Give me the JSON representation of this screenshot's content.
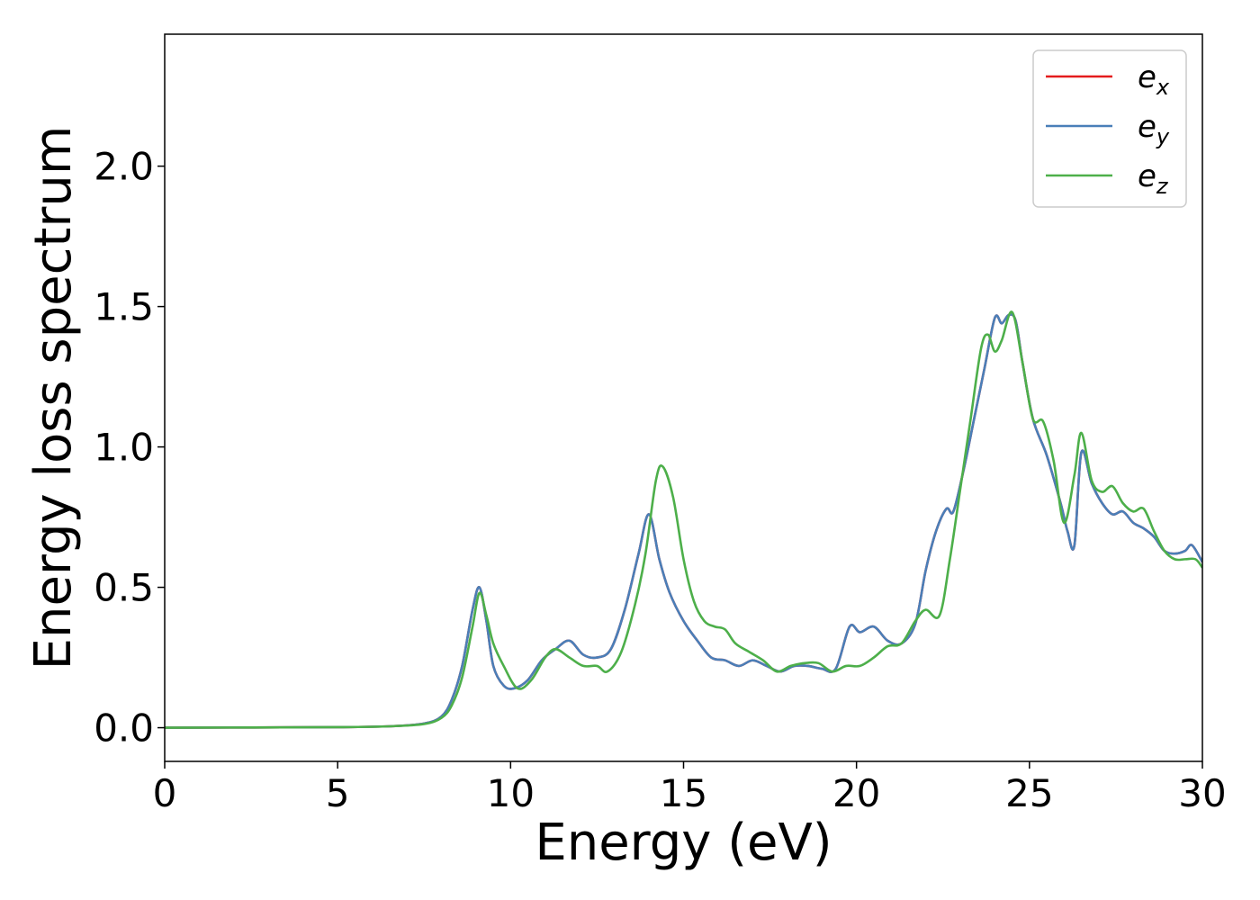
{
  "chart_data": {
    "type": "line",
    "xlabel": "Energy (eV)",
    "ylabel": "Energy loss spectrum",
    "xlim": [
      0,
      30
    ],
    "ylim": [
      -0.12,
      2.47
    ],
    "xticks": [
      0,
      5,
      10,
      15,
      20,
      25,
      30
    ],
    "xtick_labels": [
      "0",
      "5",
      "10",
      "15",
      "20",
      "25",
      "30"
    ],
    "yticks": [
      0.0,
      0.5,
      1.0,
      1.5,
      2.0
    ],
    "ytick_labels": [
      "0.0",
      "0.5",
      "1.0",
      "1.5",
      "2.0"
    ],
    "grid": false,
    "legend_position": "top-right",
    "series": [
      {
        "name": "e_x",
        "legend_base": "e",
        "legend_sub": "x",
        "color": "#e41a1c",
        "x": [
          0,
          5,
          6.5,
          7.5,
          8.0,
          8.3,
          8.6,
          8.9,
          9.1,
          9.3,
          9.5,
          9.8,
          10.1,
          10.5,
          10.9,
          11.3,
          11.7,
          12.1,
          12.5,
          12.9,
          13.3,
          13.7,
          14.0,
          14.3,
          14.6,
          15.0,
          15.4,
          15.8,
          16.2,
          16.6,
          17.0,
          17.4,
          17.8,
          18.2,
          18.6,
          19.0,
          19.4,
          19.8,
          20.1,
          20.5,
          20.9,
          21.3,
          21.7,
          22.0,
          22.3,
          22.6,
          22.8,
          23.1,
          23.4,
          23.7,
          24.0,
          24.2,
          24.4,
          24.6,
          24.8,
          25.1,
          25.5,
          25.9,
          26.1,
          26.3,
          26.5,
          26.8,
          27.1,
          27.4,
          27.7,
          28.0,
          28.3,
          28.6,
          28.9,
          29.2,
          29.5,
          29.7,
          30.0
        ],
        "y": [
          0.0,
          0.002,
          0.005,
          0.015,
          0.04,
          0.1,
          0.22,
          0.42,
          0.5,
          0.38,
          0.22,
          0.15,
          0.14,
          0.17,
          0.24,
          0.28,
          0.31,
          0.26,
          0.25,
          0.28,
          0.42,
          0.62,
          0.76,
          0.6,
          0.48,
          0.38,
          0.31,
          0.25,
          0.24,
          0.22,
          0.24,
          0.22,
          0.2,
          0.22,
          0.22,
          0.21,
          0.21,
          0.36,
          0.34,
          0.36,
          0.31,
          0.3,
          0.37,
          0.56,
          0.7,
          0.78,
          0.77,
          0.92,
          1.1,
          1.28,
          1.46,
          1.44,
          1.47,
          1.45,
          1.3,
          1.1,
          0.97,
          0.8,
          0.7,
          0.65,
          0.98,
          0.87,
          0.8,
          0.76,
          0.77,
          0.73,
          0.71,
          0.68,
          0.63,
          0.62,
          0.63,
          0.65,
          0.59
        ]
      },
      {
        "name": "e_y",
        "legend_base": "e",
        "legend_sub": "y",
        "color": "#4a7fb8",
        "x": [
          0,
          5,
          6.5,
          7.5,
          8.0,
          8.3,
          8.6,
          8.9,
          9.1,
          9.3,
          9.5,
          9.8,
          10.1,
          10.5,
          10.9,
          11.3,
          11.7,
          12.1,
          12.5,
          12.9,
          13.3,
          13.7,
          14.0,
          14.3,
          14.6,
          15.0,
          15.4,
          15.8,
          16.2,
          16.6,
          17.0,
          17.4,
          17.8,
          18.2,
          18.6,
          19.0,
          19.4,
          19.8,
          20.1,
          20.5,
          20.9,
          21.3,
          21.7,
          22.0,
          22.3,
          22.6,
          22.8,
          23.1,
          23.4,
          23.7,
          24.0,
          24.2,
          24.4,
          24.6,
          24.8,
          25.1,
          25.5,
          25.9,
          26.1,
          26.3,
          26.5,
          26.8,
          27.1,
          27.4,
          27.7,
          28.0,
          28.3,
          28.6,
          28.9,
          29.2,
          29.5,
          29.7,
          30.0
        ],
        "y": [
          0.0,
          0.002,
          0.005,
          0.015,
          0.04,
          0.1,
          0.22,
          0.42,
          0.5,
          0.38,
          0.22,
          0.15,
          0.14,
          0.17,
          0.24,
          0.28,
          0.31,
          0.26,
          0.25,
          0.28,
          0.42,
          0.62,
          0.76,
          0.6,
          0.48,
          0.38,
          0.31,
          0.25,
          0.24,
          0.22,
          0.24,
          0.22,
          0.2,
          0.22,
          0.22,
          0.21,
          0.21,
          0.36,
          0.34,
          0.36,
          0.31,
          0.3,
          0.37,
          0.56,
          0.7,
          0.78,
          0.77,
          0.92,
          1.1,
          1.28,
          1.46,
          1.44,
          1.47,
          1.45,
          1.3,
          1.1,
          0.97,
          0.8,
          0.7,
          0.65,
          0.98,
          0.87,
          0.8,
          0.76,
          0.77,
          0.73,
          0.71,
          0.68,
          0.63,
          0.62,
          0.63,
          0.65,
          0.59
        ]
      },
      {
        "name": "e_z",
        "legend_base": "e",
        "legend_sub": "z",
        "color": "#4daf4a",
        "x": [
          0,
          5,
          6.5,
          7.5,
          8.0,
          8.3,
          8.6,
          8.9,
          9.1,
          9.3,
          9.5,
          9.8,
          10.2,
          10.6,
          11.0,
          11.3,
          11.7,
          12.1,
          12.5,
          12.8,
          13.2,
          13.6,
          13.9,
          14.2,
          14.4,
          14.7,
          15.0,
          15.3,
          15.6,
          15.9,
          16.2,
          16.5,
          16.9,
          17.3,
          17.7,
          18.1,
          18.5,
          18.9,
          19.3,
          19.7,
          20.1,
          20.5,
          20.9,
          21.3,
          21.7,
          22.0,
          22.4,
          22.7,
          23.0,
          23.3,
          23.6,
          23.8,
          24.0,
          24.2,
          24.5,
          24.8,
          25.1,
          25.4,
          25.7,
          26.0,
          26.3,
          26.5,
          26.8,
          27.1,
          27.4,
          27.7,
          28.0,
          28.3,
          28.6,
          28.9,
          29.2,
          29.5,
          29.8,
          30.0
        ],
        "y": [
          0.0,
          0.002,
          0.005,
          0.013,
          0.035,
          0.08,
          0.18,
          0.36,
          0.48,
          0.4,
          0.3,
          0.22,
          0.14,
          0.17,
          0.25,
          0.28,
          0.25,
          0.22,
          0.22,
          0.2,
          0.27,
          0.44,
          0.62,
          0.88,
          0.93,
          0.82,
          0.6,
          0.45,
          0.38,
          0.36,
          0.35,
          0.3,
          0.27,
          0.24,
          0.2,
          0.22,
          0.23,
          0.23,
          0.2,
          0.22,
          0.22,
          0.25,
          0.29,
          0.3,
          0.38,
          0.42,
          0.4,
          0.6,
          0.85,
          1.1,
          1.35,
          1.4,
          1.34,
          1.38,
          1.48,
          1.3,
          1.1,
          1.09,
          0.95,
          0.73,
          0.9,
          1.05,
          0.88,
          0.84,
          0.86,
          0.8,
          0.77,
          0.78,
          0.7,
          0.63,
          0.6,
          0.6,
          0.6,
          0.57
        ]
      }
    ]
  }
}
